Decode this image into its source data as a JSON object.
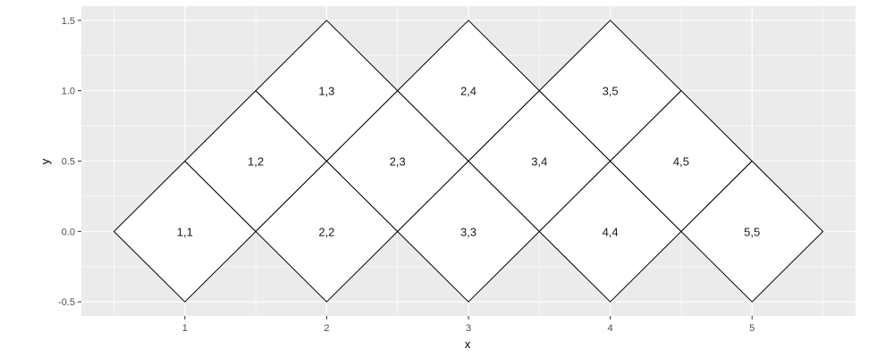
{
  "chart_data": {
    "type": "heatmap",
    "title": "",
    "xlabel": "x",
    "ylabel": "y",
    "xlim": [
      0.5,
      5.5
    ],
    "ylim": [
      -0.5,
      1.5
    ],
    "x_ticks": [
      1,
      2,
      3,
      4,
      5
    ],
    "x_tick_labels": [
      "1",
      "2",
      "3",
      "4",
      "5"
    ],
    "y_ticks": [
      -0.5,
      0.0,
      0.5,
      1.0,
      1.5
    ],
    "y_tick_labels": [
      "-0.5",
      "0.0",
      "0.5",
      "1.0",
      "1.5"
    ],
    "tile_half_width": 0.5,
    "tile_half_height": 0.5,
    "grid": true,
    "tiles": [
      {
        "label": "1,1",
        "x": 1.0,
        "y": 0.0
      },
      {
        "label": "1,2",
        "x": 1.5,
        "y": 0.5
      },
      {
        "label": "1,3",
        "x": 2.0,
        "y": 1.0
      },
      {
        "label": "2,2",
        "x": 2.0,
        "y": 0.0
      },
      {
        "label": "2,3",
        "x": 2.5,
        "y": 0.5
      },
      {
        "label": "2,4",
        "x": 3.0,
        "y": 1.0
      },
      {
        "label": "3,3",
        "x": 3.0,
        "y": 0.0
      },
      {
        "label": "3,4",
        "x": 3.5,
        "y": 0.5
      },
      {
        "label": "3,5",
        "x": 4.0,
        "y": 1.0
      },
      {
        "label": "4,4",
        "x": 4.0,
        "y": 0.0
      },
      {
        "label": "4,5",
        "x": 4.5,
        "y": 0.5
      },
      {
        "label": "5,5",
        "x": 5.0,
        "y": 0.0
      }
    ],
    "colors": {
      "panel_background": "#ebebeb",
      "grid": "#ffffff",
      "tile_fill": "#ffffff",
      "tile_border": "#000000"
    }
  }
}
